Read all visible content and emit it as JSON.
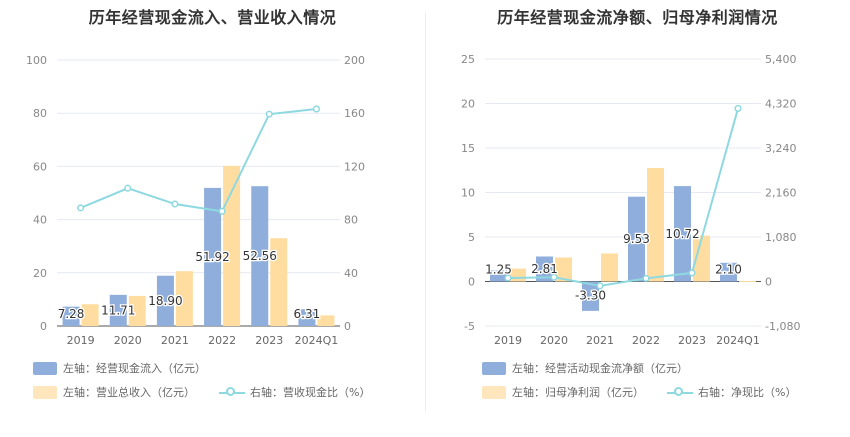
{
  "chart_data": [
    {
      "type": "bar",
      "title": "历年经营现金流入、营业收入情况",
      "categories": [
        "2019",
        "2020",
        "2021",
        "2022",
        "2023",
        "2024Q1"
      ],
      "series": [
        {
          "name": "左轴：经营现金流入（亿元）",
          "axis": "left",
          "kind": "bar",
          "color": "#8FAEDC",
          "values": [
            7.28,
            11.71,
            18.9,
            51.92,
            52.56,
            6.31
          ],
          "labels": [
            "7.28",
            "11.71",
            "18.90",
            "51.92",
            "52.56",
            "6.31"
          ]
        },
        {
          "name": "左轴：营业总收入（亿元）",
          "axis": "left",
          "kind": "bar",
          "color": "#FFDDA0",
          "values": [
            8.2,
            11.3,
            20.6,
            60.2,
            33.0,
            4.0
          ]
        },
        {
          "name": "右轴：营收现金比（%）",
          "axis": "right",
          "kind": "line",
          "color": "#8ED9E0",
          "values": [
            88.8,
            103.6,
            91.7,
            86.2,
            159.3,
            163.2
          ]
        }
      ],
      "left_axis": {
        "ticks": [
          "0",
          "20",
          "40",
          "60",
          "80",
          "100"
        ],
        "min": 0,
        "max": 100
      },
      "right_axis": {
        "ticks": [
          "0",
          "40",
          "80",
          "120",
          "160",
          "200"
        ],
        "min": 0,
        "max": 200
      },
      "legend": "bottom-left",
      "grid": true
    },
    {
      "type": "bar",
      "title": "历年经营现金流净额、归母净利润情况",
      "categories": [
        "2019",
        "2020",
        "2021",
        "2022",
        "2023",
        "2024Q1"
      ],
      "series": [
        {
          "name": "左轴：经营活动现金流净额（亿元）",
          "axis": "left",
          "kind": "bar",
          "color": "#8FAEDC",
          "values": [
            1.25,
            2.81,
            -3.3,
            9.53,
            10.72,
            2.1
          ],
          "labels": [
            "1.25",
            "2.81",
            "-3.30",
            "9.53",
            "10.72",
            "2.10"
          ]
        },
        {
          "name": "左轴：归母净利润（亿元）",
          "axis": "left",
          "kind": "bar",
          "color": "#FFDDA0",
          "values": [
            1.45,
            2.7,
            3.15,
            12.75,
            5.15,
            0.05
          ]
        },
        {
          "name": "右轴：净现比（%）",
          "axis": "right",
          "kind": "line",
          "color": "#8ED9E0",
          "values": [
            86,
            104,
            -105,
            75,
            208,
            4200
          ]
        }
      ],
      "left_axis": {
        "ticks": [
          "-5",
          "0",
          "5",
          "10",
          "15",
          "20",
          "25"
        ],
        "min": -5,
        "max": 25
      },
      "right_axis": {
        "ticks": [
          "-1,080",
          "0",
          "1,080",
          "2,160",
          "3,240",
          "4,320",
          "5,400"
        ],
        "min": -1080,
        "max": 5400
      },
      "legend": "bottom-left",
      "grid": true
    }
  ]
}
